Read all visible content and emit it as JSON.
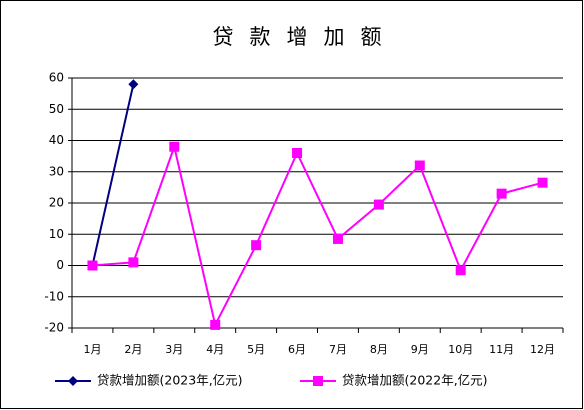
{
  "chart_data": {
    "type": "line",
    "title": "贷款增加额",
    "categories": [
      "1月",
      "2月",
      "3月",
      "4月",
      "5月",
      "6月",
      "7月",
      "8月",
      "9月",
      "10月",
      "11月",
      "12月"
    ],
    "series": [
      {
        "name": "贷款增加额(2023年,亿元)",
        "color": "#000080",
        "marker": "diamond",
        "values": [
          0,
          58,
          null,
          null,
          null,
          null,
          null,
          null,
          null,
          null,
          null,
          null
        ]
      },
      {
        "name": "贷款增加额(2022年,亿元)",
        "color": "#ff00ff",
        "marker": "square",
        "values": [
          0,
          1,
          38,
          -19,
          6.5,
          36,
          8.5,
          19.5,
          32,
          -1.5,
          23,
          26.5
        ]
      }
    ],
    "ylim": [
      -20,
      60
    ],
    "yticks": [
      -20,
      -10,
      0,
      10,
      20,
      30,
      40,
      50,
      60
    ],
    "grid": true,
    "legend": "bottom"
  }
}
